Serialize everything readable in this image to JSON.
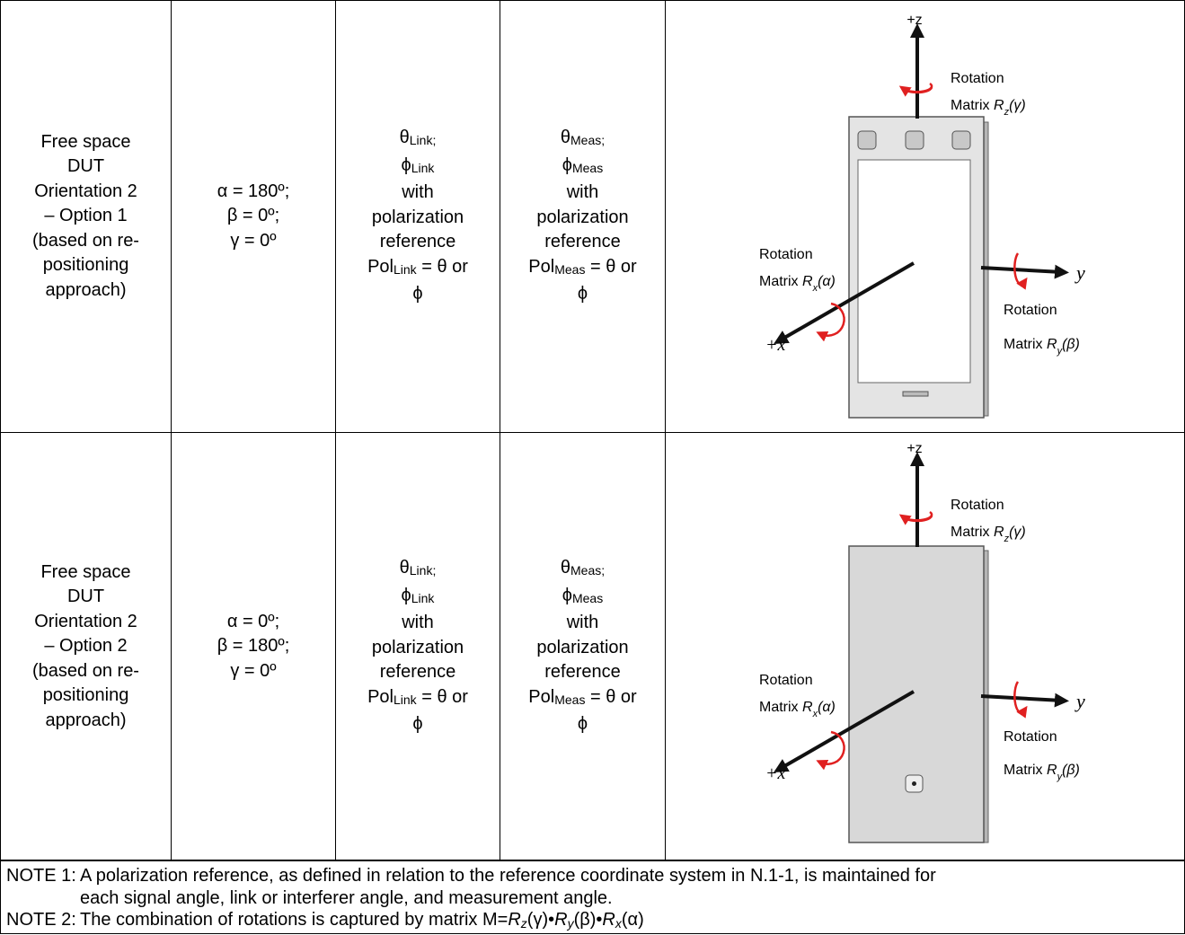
{
  "table": {
    "rows": [
      {
        "cells": [
          [
            [
              "Free space"
            ],
            [
              "DUT"
            ],
            [
              "Orientation 2"
            ],
            [
              "– Option 1"
            ],
            [
              "(based on re-"
            ],
            [
              "positioning"
            ],
            [
              "approach)"
            ]
          ],
          [
            [
              "α = 180º;"
            ],
            [
              "β = 0º;"
            ],
            [
              "γ = 0º"
            ]
          ],
          [
            [
              "θ",
              {
                "text": "Link;",
                "style": "sub"
              }
            ],
            [
              "ϕ",
              {
                "text": "Link",
                "style": "sub"
              }
            ],
            [
              "with"
            ],
            [
              "polarization"
            ],
            [
              "reference"
            ],
            [
              "Pol",
              {
                "text": "Link",
                "style": "sub"
              },
              " = θ or"
            ],
            [
              "ϕ"
            ]
          ],
          [
            [
              "θ",
              {
                "text": "Meas;",
                "style": "sub"
              }
            ],
            [
              "ϕ",
              {
                "text": "Meas",
                "style": "sub"
              }
            ],
            [
              "with"
            ],
            [
              "polarization"
            ],
            [
              "reference"
            ],
            [
              "Pol",
              {
                "text": "Meas",
                "style": "sub"
              },
              " = θ or"
            ],
            [
              "ϕ"
            ]
          ]
        ],
        "diagram": {
          "z_axis": "+z",
          "x_axis": "+x",
          "y_axis": "y",
          "z_rotation": {
            "line1": "Rotation",
            "line2": [
              "Matrix ",
              {
                "text": "R",
                "style": "i"
              },
              {
                "text": "z",
                "style": "isub"
              },
              {
                "text": "(γ)",
                "style": "i"
              }
            ]
          },
          "x_rotation": {
            "line1": "Rotation",
            "line2": [
              "Matrix ",
              {
                "text": "R",
                "style": "i"
              },
              {
                "text": "x",
                "style": "isub"
              },
              {
                "text": "(α)",
                "style": "i"
              }
            ]
          },
          "y_rotation": {
            "line1": "Rotation",
            "line2": [
              "Matrix ",
              {
                "text": "R",
                "style": "i"
              },
              {
                "text": "y",
                "style": "isub"
              },
              {
                "text": "(β)",
                "style": "i"
              }
            ]
          }
        }
      },
      {
        "cells": [
          [
            [
              "Free space"
            ],
            [
              "DUT"
            ],
            [
              "Orientation 2"
            ],
            [
              "– Option 2"
            ],
            [
              "(based on re-"
            ],
            [
              "positioning"
            ],
            [
              "approach)"
            ]
          ],
          [
            [
              "α = 0º;"
            ],
            [
              "β = 180º;"
            ],
            [
              "γ = 0º"
            ]
          ],
          [
            [
              "θ",
              {
                "text": "Link;",
                "style": "sub"
              }
            ],
            [
              "ϕ",
              {
                "text": "Link",
                "style": "sub"
              }
            ],
            [
              "with"
            ],
            [
              "polarization"
            ],
            [
              "reference"
            ],
            [
              "Pol",
              {
                "text": "Link",
                "style": "sub"
              },
              " = θ or"
            ],
            [
              "ϕ"
            ]
          ],
          [
            [
              "θ",
              {
                "text": "Meas;",
                "style": "sub"
              }
            ],
            [
              "ϕ",
              {
                "text": "Meas",
                "style": "sub"
              }
            ],
            [
              "with"
            ],
            [
              "polarization"
            ],
            [
              "reference"
            ],
            [
              "Pol",
              {
                "text": "Meas",
                "style": "sub"
              },
              " = θ or"
            ],
            [
              "ϕ"
            ]
          ]
        ],
        "diagram": {
          "z_axis": "+z",
          "x_axis": "+x",
          "y_axis": "y",
          "z_rotation": {
            "line1": "Rotation",
            "line2": [
              "Matrix ",
              {
                "text": "R",
                "style": "i"
              },
              {
                "text": "z",
                "style": "isub"
              },
              {
                "text": "(γ)",
                "style": "i"
              }
            ]
          },
          "x_rotation": {
            "line1": "Rotation",
            "line2": [
              "Matrix ",
              {
                "text": "R",
                "style": "i"
              },
              {
                "text": "x",
                "style": "isub"
              },
              {
                "text": "(α)",
                "style": "i"
              }
            ]
          },
          "y_rotation": {
            "line1": "Rotation",
            "line2": [
              "Matrix ",
              {
                "text": "R",
                "style": "i"
              },
              {
                "text": "y",
                "style": "isub"
              },
              {
                "text": "(β)",
                "style": "i"
              }
            ]
          }
        }
      }
    ]
  },
  "notes": [
    {
      "label": "NOTE 1:",
      "lines": [
        [
          "A polarization reference, as defined in relation to the reference coordinate system in N.1-1, is maintained for"
        ],
        [
          "each signal angle, link or interferer angle, and measurement angle."
        ]
      ]
    },
    {
      "label": "NOTE 2:",
      "lines": [
        [
          "The combination of rotations is captured by matrix M=",
          {
            "text": "R",
            "style": "i"
          },
          {
            "text": "z",
            "style": "isub"
          },
          "(γ)•",
          {
            "text": "R",
            "style": "i"
          },
          {
            "text": "y",
            "style": "isub"
          },
          "(β)•",
          {
            "text": "R",
            "style": "i"
          },
          {
            "text": "x",
            "style": "isub"
          },
          "(α)"
        ]
      ]
    }
  ]
}
